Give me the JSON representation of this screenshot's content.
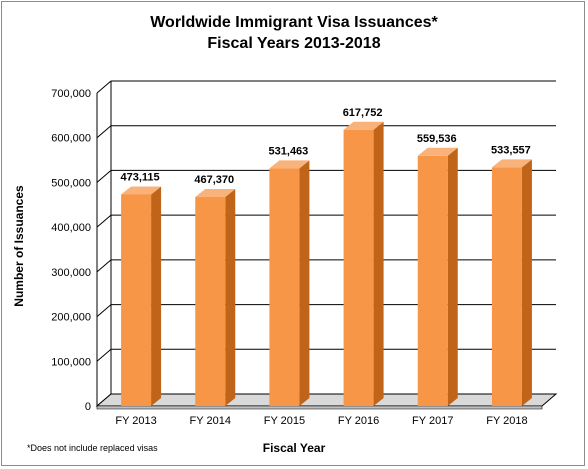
{
  "chart_data": {
    "type": "bar",
    "title": "Worldwide Immigrant Visa Issuances*",
    "subtitle": "Fiscal Years 2013-2018",
    "xlabel": "Fiscal Year",
    "ylabel": "Number of Issuances",
    "categories": [
      "FY 2013",
      "FY 2014",
      "FY 2015",
      "FY 2016",
      "FY 2017",
      "FY 2018"
    ],
    "values": [
      473115,
      467370,
      531463,
      617752,
      559536,
      533557
    ],
    "value_labels": [
      "473,115",
      "467,370",
      "531,463",
      "617,752",
      "559,536",
      "533,557"
    ],
    "ylim": [
      0,
      700000
    ],
    "yticks": [
      0,
      100000,
      200000,
      300000,
      400000,
      500000,
      600000,
      700000
    ],
    "ytick_labels": [
      "0",
      "100,000",
      "200,000",
      "300,000",
      "400,000",
      "500,000",
      "600,000",
      "700,000"
    ],
    "grid": true,
    "legend": "none",
    "footnote": "*Does not include replaced visas",
    "colors": {
      "bar_front": "#f79646",
      "bar_side": "#c0641a",
      "bar_top": "#f9b27a",
      "grid": "#000000",
      "floor": "#d9d9d9"
    }
  }
}
